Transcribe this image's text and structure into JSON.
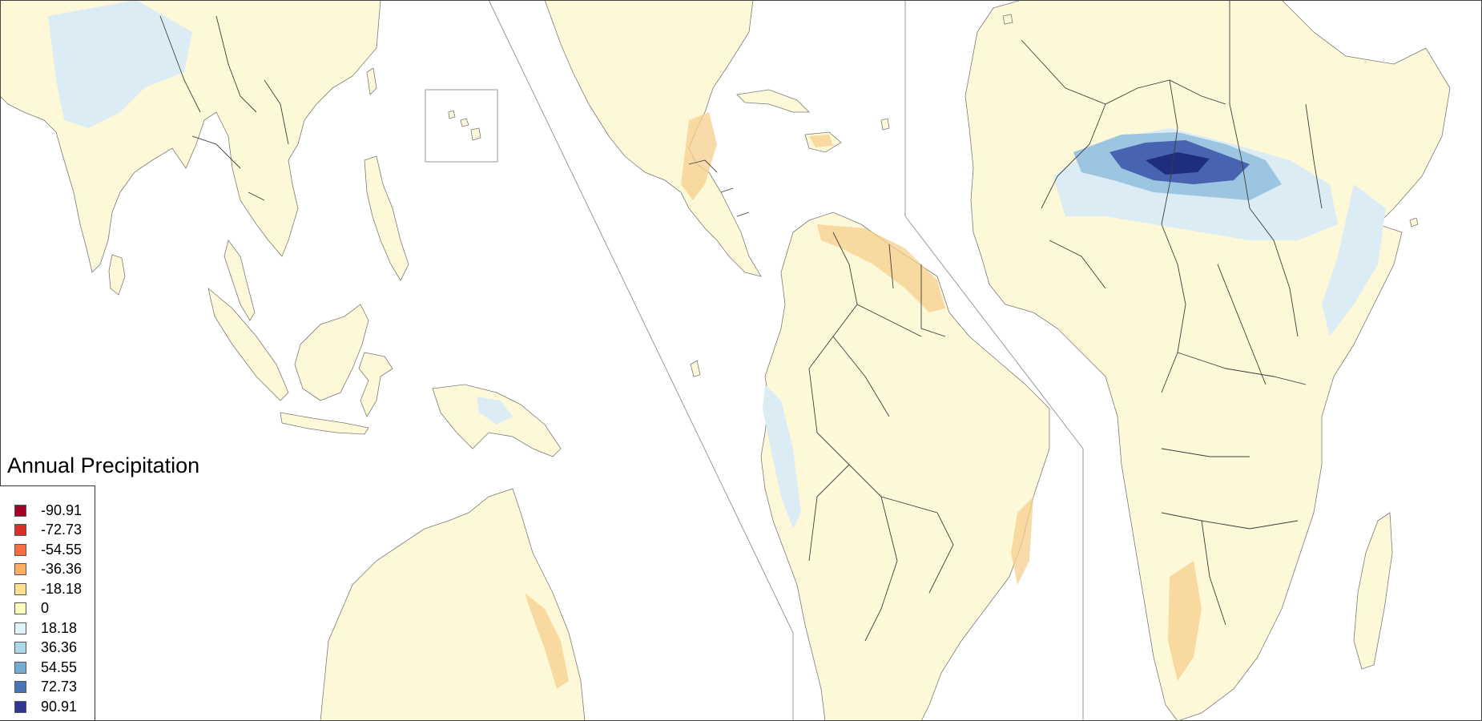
{
  "map": {
    "legend": {
      "title": "Annual Precipitation",
      "items": [
        {
          "label": "-90.91",
          "color": "#a50026"
        },
        {
          "label": "-72.73",
          "color": "#d73027"
        },
        {
          "label": "-54.55",
          "color": "#f46d43"
        },
        {
          "label": "-36.36",
          "color": "#fdae61"
        },
        {
          "label": "-18.18",
          "color": "#fee090"
        },
        {
          "label": "0",
          "color": "#ffffbf"
        },
        {
          "label": "18.18",
          "color": "#e0f3f8"
        },
        {
          "label": "36.36",
          "color": "#abd9e9"
        },
        {
          "label": "54.55",
          "color": "#74add1"
        },
        {
          "label": "72.73",
          "color": "#4575b4"
        },
        {
          "label": "90.91",
          "color": "#313695"
        }
      ]
    },
    "colors": {
      "land_base": "#fdf9d8",
      "land_dry": "#fbe6a8",
      "land_drier": "#f6cf8e",
      "land_wet": "#dcecf5",
      "land_wetter": "#9cc5e2",
      "land_wettest": "#4863b0",
      "land_extreme": "#1f2d7e",
      "border": "#3d3d3d",
      "coast": "#7a7a7a",
      "panel_divider": "#9a9a9a"
    }
  }
}
